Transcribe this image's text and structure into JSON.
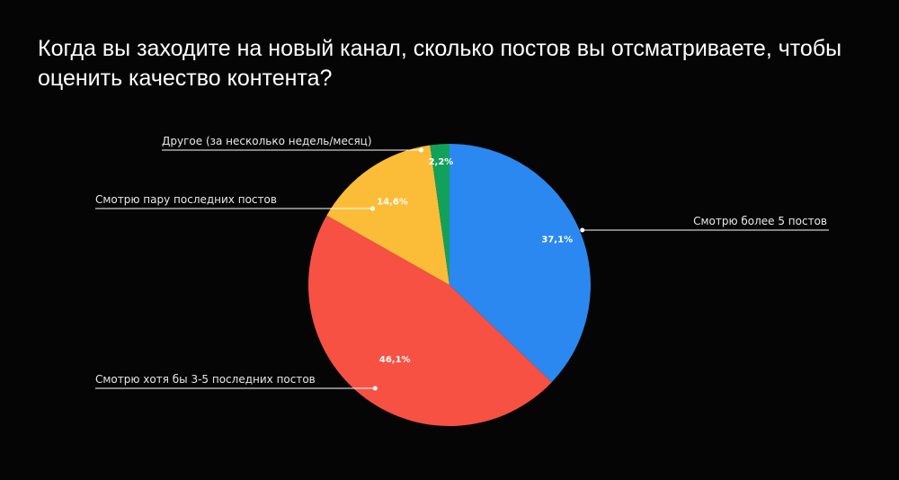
{
  "chart_data": {
    "type": "pie",
    "title": "Когда вы заходите на новый канал, сколько постов вы отсматриваете, чтобы оценить качество контента?",
    "slices": [
      {
        "label": "Смотрю более 5 постов",
        "value": 37.1,
        "value_label": "37,1%",
        "color": "#2b88f0"
      },
      {
        "label": "Смотрю хотя бы 3-5 последних постов",
        "value": 46.1,
        "value_label": "46,1%",
        "color": "#f65143"
      },
      {
        "label": "Смотрю пару последних постов",
        "value": 14.6,
        "value_label": "14,6%",
        "color": "#fbbd38"
      },
      {
        "label": "Другое (за несколько недель/месяц)",
        "value": 2.2,
        "value_label": "2,2%",
        "color": "#12a15b"
      }
    ],
    "start": "top",
    "direction": "clockwise"
  }
}
